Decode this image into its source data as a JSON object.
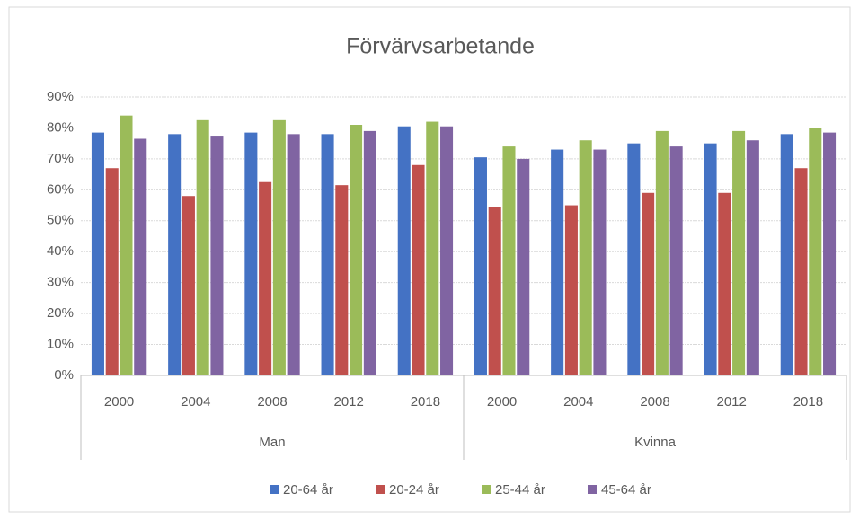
{
  "chart_data": {
    "type": "bar",
    "title": "Förvärvsarbetande",
    "groups": [
      {
        "name": "Man",
        "categories": [
          "2000",
          "2004",
          "2008",
          "2012",
          "2018"
        ]
      },
      {
        "name": "Kvinna",
        "categories": [
          "2000",
          "2004",
          "2008",
          "2012",
          "2018"
        ]
      }
    ],
    "series": [
      {
        "name": "20-64 år",
        "color": "#4472c4",
        "values": [
          78.5,
          78,
          78.5,
          78,
          80.5,
          70.5,
          73,
          75,
          75,
          78
        ]
      },
      {
        "name": "20-24 år",
        "color": "#c0504d",
        "values": [
          67,
          58,
          62.5,
          61.5,
          68,
          54.5,
          55,
          59,
          59,
          67
        ]
      },
      {
        "name": "25-44 år",
        "color": "#9bbb59",
        "values": [
          84,
          82.5,
          82.5,
          81,
          82,
          74,
          76,
          79,
          79,
          80
        ]
      },
      {
        "name": "45-64 år",
        "color": "#8064a2",
        "values": [
          76.5,
          77.5,
          78,
          79,
          80.5,
          70,
          73,
          74,
          76,
          78.5
        ]
      }
    ],
    "ylim": [
      0,
      90
    ],
    "yticks": [
      {
        "value": 0,
        "label": "0%"
      },
      {
        "value": 10,
        "label": "10%"
      },
      {
        "value": 20,
        "label": "20%"
      },
      {
        "value": 30,
        "label": "30%"
      },
      {
        "value": 40,
        "label": "40%"
      },
      {
        "value": 50,
        "label": "50%"
      },
      {
        "value": 60,
        "label": "60%"
      },
      {
        "value": 70,
        "label": "70%"
      },
      {
        "value": 80,
        "label": "80%"
      },
      {
        "value": 90,
        "label": "90%"
      }
    ],
    "grid": true,
    "legend": "bottom"
  }
}
